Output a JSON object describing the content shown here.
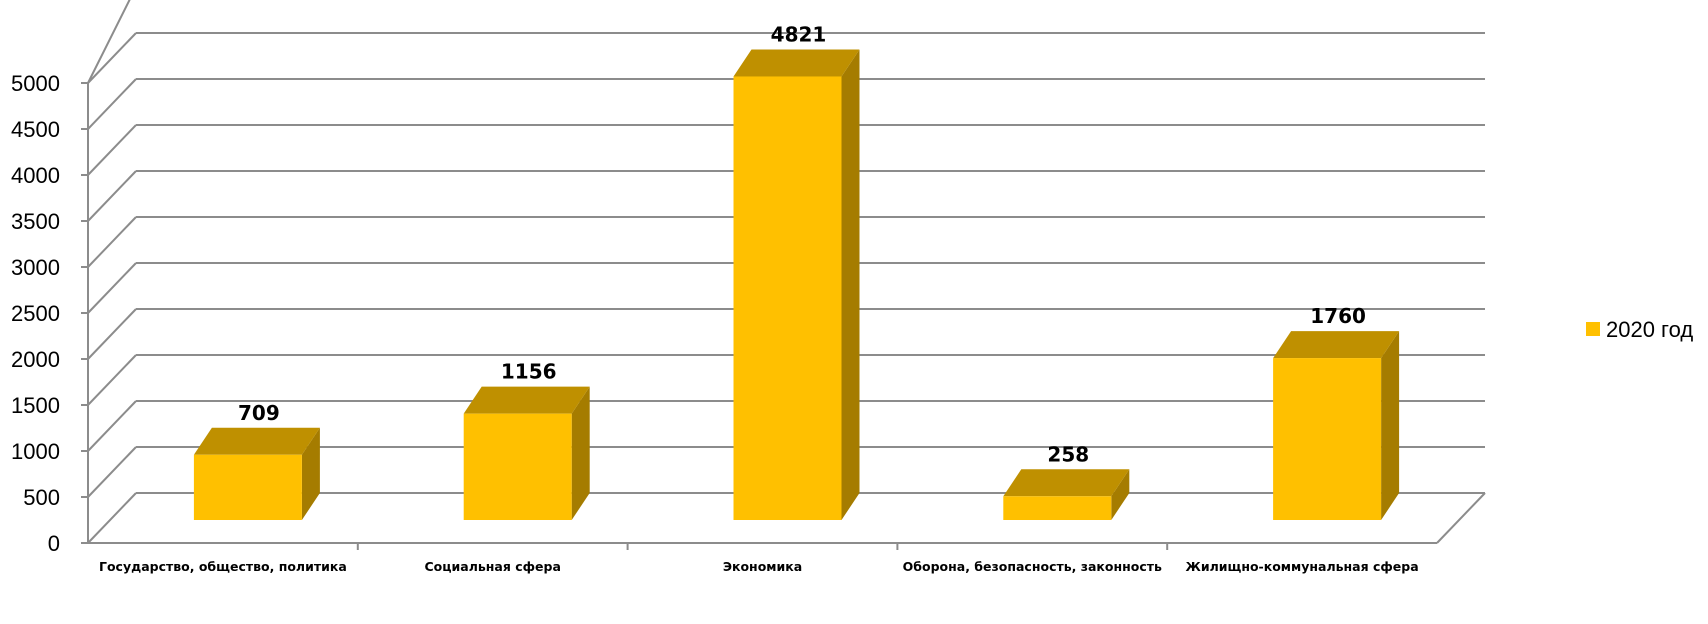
{
  "chart_data": {
    "type": "bar",
    "title": "",
    "xlabel": "",
    "ylabel": "",
    "categories": [
      "Государство, общество, политика",
      "Социальная сфера",
      "Экономика",
      "Оборона, безопасность, законность",
      "Жилищно-коммунальная сфера"
    ],
    "series": [
      {
        "name": "2020 год",
        "values": [
          709,
          1156,
          4821,
          258,
          1760
        ],
        "color": "#FFC000"
      }
    ],
    "data_labels": [
      "709",
      "1156",
      "4821",
      "258",
      "1760"
    ],
    "ylim": [
      0,
      5000
    ],
    "yticks": [
      0,
      500,
      1000,
      1500,
      2000,
      2500,
      3000,
      3500,
      4000,
      4500,
      5000
    ],
    "grid": true,
    "legend_position": "right",
    "style": "3d-column",
    "colors": {
      "bar_front": "#FFC000",
      "bar_top": "#BF9000",
      "bar_side": "#A57C00",
      "grid": "#8C8C8C"
    }
  }
}
